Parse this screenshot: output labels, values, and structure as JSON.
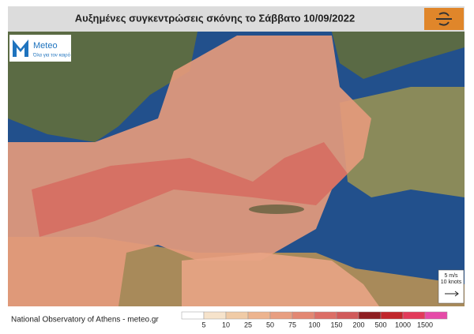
{
  "header": {
    "title": "Αυξημένες συγκεντρώσεις σκόνης το Σάββατο 10/09/2022"
  },
  "logo": {
    "name": "Meteo",
    "tagline": "Όλα για τον καιρό"
  },
  "footer": {
    "source": "National Observatory of Athens - meteo.gr"
  },
  "legend": {
    "labels": [
      "5",
      "10",
      "25",
      "50",
      "75",
      "100",
      "150",
      "200",
      "500",
      "1000",
      "1500"
    ],
    "colors": [
      "#ffffff",
      "#f6e3cb",
      "#f0cba6",
      "#edb48e",
      "#e89e80",
      "#e38772",
      "#dc6e66",
      "#d15a5a",
      "#8e1d20",
      "#c1262b",
      "#e23a5a",
      "#e64aa8"
    ]
  },
  "wind_key": {
    "speed": "5 m/s",
    "knots": "10 knots"
  }
}
